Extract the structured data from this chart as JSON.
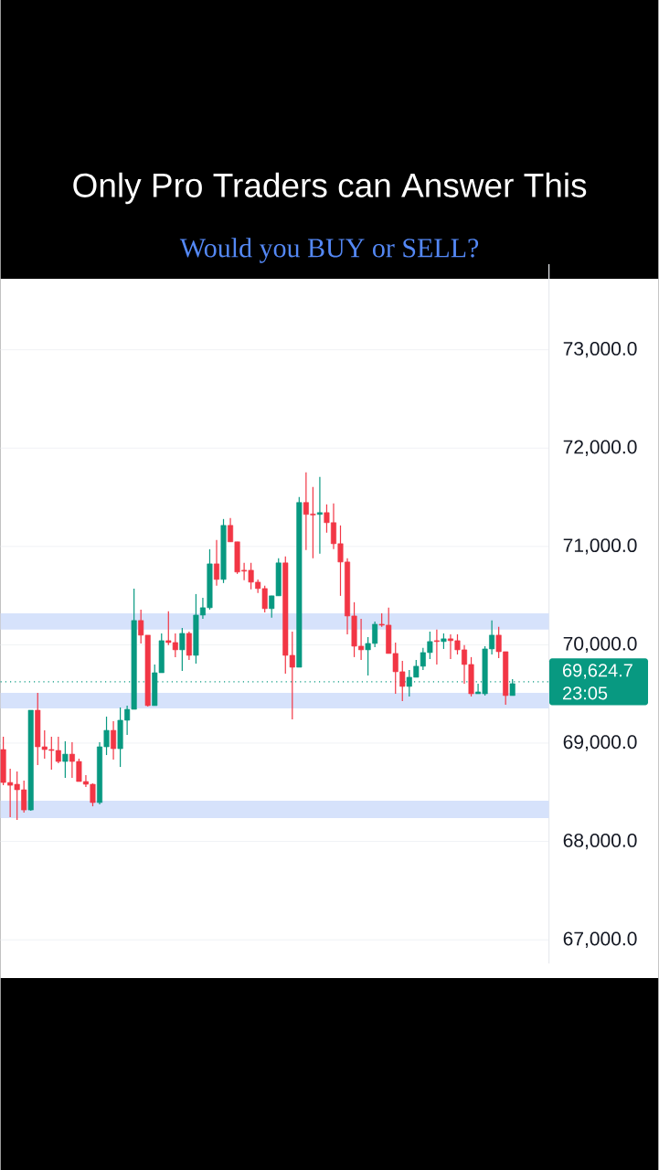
{
  "chart_data": {
    "type": "candlestick",
    "title": "Only Pro Traders can Answer This",
    "subtitle": "Would you BUY or SELL?",
    "categories": [
      null,
      null,
      null,
      null,
      null,
      null,
      null,
      null,
      null,
      null,
      null,
      null,
      null,
      null,
      null,
      null,
      null,
      null,
      null,
      null,
      null,
      null,
      null,
      null,
      null,
      null,
      null,
      null,
      null,
      null,
      null,
      null,
      null,
      null,
      null,
      null,
      null,
      null,
      null,
      null,
      null,
      null,
      null,
      null,
      null,
      null,
      null,
      null,
      null,
      null,
      null,
      null,
      null,
      null,
      null,
      null,
      null,
      null,
      null,
      null,
      null,
      null,
      null,
      null,
      null,
      null,
      null,
      null,
      null,
      null,
      null,
      null,
      null,
      null,
      null
    ],
    "ohlc": [
      [
        68935,
        69065,
        68572,
        68600
      ],
      [
        68600,
        68740,
        68247,
        68572
      ],
      [
        68582,
        68712,
        68219,
        68526
      ],
      [
        68526,
        68619,
        68293,
        68321
      ],
      [
        68321,
        69335,
        68312,
        69335
      ],
      [
        69335,
        69512,
        68777,
        68963
      ],
      [
        68963,
        69130,
        68842,
        68935
      ],
      [
        68935,
        69065,
        68730,
        68926
      ],
      [
        68926,
        69065,
        68796,
        68814
      ],
      [
        68814,
        69019,
        68647,
        68888
      ],
      [
        68888,
        69009,
        68647,
        68814
      ],
      [
        68814,
        68842,
        68610,
        68610
      ],
      [
        68610,
        68675,
        68554,
        68582
      ],
      [
        68582,
        68591,
        68358,
        68396
      ],
      [
        68396,
        69009,
        68377,
        68963
      ],
      [
        68963,
        69270,
        68879,
        69130
      ],
      [
        69130,
        69223,
        68833,
        68944
      ],
      [
        68944,
        69363,
        68758,
        69233
      ],
      [
        69233,
        69382,
        69084,
        69344
      ],
      [
        69344,
        70572,
        69344,
        70247
      ],
      [
        70247,
        70358,
        70014,
        70098
      ],
      [
        70098,
        70098,
        69372,
        69382
      ],
      [
        69382,
        69800,
        69382,
        69716
      ],
      [
        69716,
        70116,
        69716,
        70042
      ],
      [
        70042,
        70340,
        69996,
        70023
      ],
      [
        70023,
        70116,
        69875,
        69949
      ],
      [
        69949,
        70172,
        69735,
        70116
      ],
      [
        70116,
        70135,
        69847,
        69893
      ],
      [
        69893,
        70516,
        69809,
        70302
      ],
      [
        70302,
        70479,
        70265,
        70377
      ],
      [
        70377,
        70972,
        70358,
        70823
      ],
      [
        70823,
        71065,
        70600,
        70665
      ],
      [
        70665,
        71279,
        70628,
        71214
      ],
      [
        71214,
        71288,
        71047,
        71047
      ],
      [
        71047,
        71047,
        70721,
        70740
      ],
      [
        70758,
        70833,
        70656,
        70749
      ],
      [
        70758,
        70833,
        70563,
        70637
      ],
      [
        70637,
        70665,
        70526,
        70572
      ],
      [
        70572,
        70600,
        70330,
        70368
      ],
      [
        70368,
        70498,
        70275,
        70498
      ],
      [
        70498,
        70879,
        70498,
        70833
      ],
      [
        70833,
        70898,
        69707,
        69893
      ],
      [
        69893,
        70135,
        69242,
        69772
      ],
      [
        69772,
        71502,
        69772,
        71447
      ],
      [
        71447,
        71753,
        70963,
        71326
      ],
      [
        71330,
        71605,
        70879,
        71320
      ],
      [
        71326,
        71707,
        70926,
        71344
      ],
      [
        71344,
        71428,
        71140,
        71242
      ],
      [
        71242,
        71437,
        70972,
        71028
      ],
      [
        71028,
        71214,
        70498,
        70842
      ],
      [
        70842,
        70879,
        70107,
        70293
      ],
      [
        70293,
        70433,
        69875,
        69986
      ],
      [
        69986,
        70265,
        69847,
        69949
      ],
      [
        69949,
        70079,
        69689,
        70014
      ],
      [
        70014,
        70237,
        69977,
        70209
      ],
      [
        70209,
        70321,
        70182,
        70200
      ],
      [
        70200,
        70377,
        69912,
        69912
      ],
      [
        69912,
        70023,
        69502,
        69726
      ],
      [
        69726,
        69837,
        69428,
        69577
      ],
      [
        69577,
        69744,
        69475,
        69670
      ],
      [
        69670,
        69847,
        69670,
        69782
      ],
      [
        69782,
        69968,
        69744,
        69921
      ],
      [
        69921,
        70135,
        69856,
        70033
      ],
      [
        70042,
        70154,
        69800,
        70033
      ],
      [
        70033,
        70116,
        69958,
        70061
      ],
      [
        70061,
        70107,
        69856,
        70042
      ],
      [
        70042,
        70107,
        69902,
        69949
      ],
      [
        69949,
        69996,
        69605,
        69800
      ],
      [
        69800,
        69875,
        69475,
        69502
      ],
      [
        69502,
        69605,
        69502,
        69521
      ],
      [
        69502,
        69986,
        69484,
        69958
      ],
      [
        69958,
        70247,
        69902,
        70098
      ],
      [
        70098,
        70182,
        69865,
        69930
      ],
      [
        69930,
        69930,
        69391,
        69484
      ],
      [
        69484,
        69651,
        69484,
        69605
      ]
    ],
    "colors": [
      "#f23645",
      "#f23645",
      "#f23645",
      "#f23645",
      "#089981",
      "#f23645",
      "#f23645",
      "#f23645",
      "#f23645",
      "#089981",
      "#f23645",
      "#f23645",
      "#f23645",
      "#f23645",
      "#089981",
      "#089981",
      "#f23645",
      "#089981",
      "#089981",
      "#089981",
      "#f23645",
      "#f23645",
      "#089981",
      "#089981",
      "#f23645",
      "#f23645",
      "#089981",
      "#f23645",
      "#089981",
      "#089981",
      "#089981",
      "#f23645",
      "#089981",
      "#f23645",
      "#f23645",
      "#f23645",
      "#f23645",
      "#f23645",
      "#f23645",
      "#089981",
      "#089981",
      "#f23645",
      "#f23645",
      "#089981",
      "#f23645",
      "#f23645",
      "#089981",
      "#f23645",
      "#f23645",
      "#f23645",
      "#f23645",
      "#f23645",
      "#f23645",
      "#089981",
      "#089981",
      "#f23645",
      "#f23645",
      "#f23645",
      "#f23645",
      "#089981",
      "#089981",
      "#089981",
      "#089981",
      "#f23645",
      "#089981",
      "#f23645",
      "#f23645",
      "#f23645",
      "#f23645",
      "#089981",
      "#089981",
      "#089981",
      "#f23645",
      "#f23645",
      "#089981"
    ],
    "ylim": [
      66760,
      73870
    ],
    "yticks": [
      {
        "value": 67000,
        "label": "67,000.0"
      },
      {
        "value": 68000,
        "label": "68,000.0"
      },
      {
        "value": 69000,
        "label": "69,000.0"
      },
      {
        "value": 70000,
        "label": "70,000.0"
      },
      {
        "value": 71000,
        "label": "71,000.0"
      },
      {
        "value": 72000,
        "label": "72,000.0"
      },
      {
        "value": 73000,
        "label": "73,000.0"
      }
    ],
    "tick_labels": "y",
    "grid": "y",
    "ref_lines": [
      {
        "axis": "y",
        "value": 69624.7,
        "label": "69,624.7",
        "color": "#089981",
        "line_style": "dotted"
      }
    ],
    "bands": [
      {
        "axis": "y",
        "from": 70154,
        "to": 70321,
        "color": "#d6e2fb"
      },
      {
        "axis": "y",
        "from": 69353,
        "to": 69512,
        "color": "#d6e2fb"
      },
      {
        "axis": "y",
        "from": 68238,
        "to": 68415,
        "color": "#d6e2fb"
      }
    ],
    "annotations": [
      "23:05"
    ]
  }
}
